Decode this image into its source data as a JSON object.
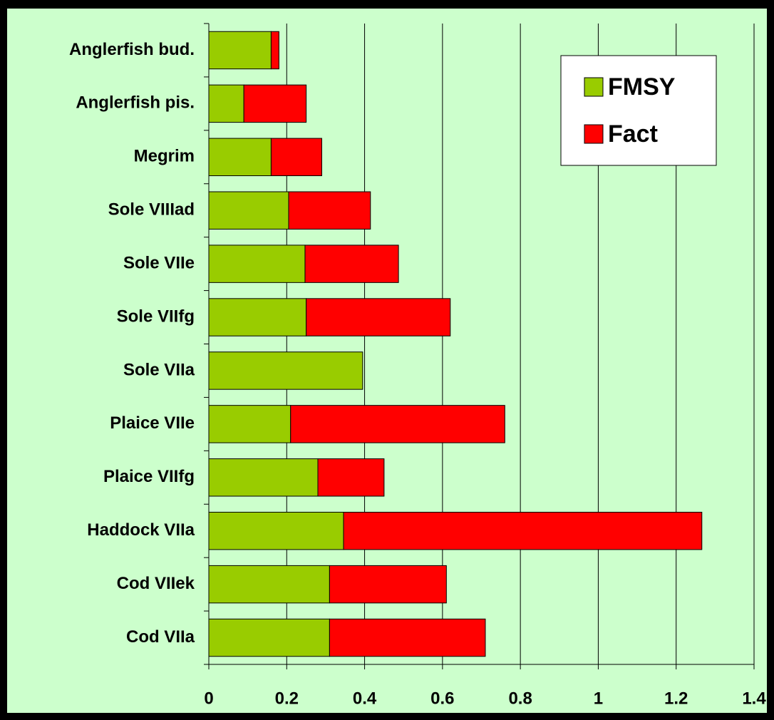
{
  "chart_data": {
    "type": "bar",
    "orientation": "horizontal",
    "stacked": true,
    "categories": [
      "Anglerfish bud.",
      "Anglerfish pis.",
      "Megrim",
      "Sole VIIIad",
      "Sole VIIe",
      "Sole VIIfg",
      "Sole VIIa",
      "Plaice VIIe",
      "Plaice VIIfg",
      "Haddock VIIa",
      "Cod VIIek",
      "Cod VIIa"
    ],
    "series": [
      {
        "name": "FMSY",
        "color": "#99cc00",
        "values": [
          0.16,
          0.09,
          0.16,
          0.205,
          0.247,
          0.25,
          0.395,
          0.21,
          0.28,
          0.346,
          0.31,
          0.31
        ]
      },
      {
        "name": "Fact",
        "color": "#ff0000",
        "values": [
          0.02,
          0.16,
          0.13,
          0.21,
          0.24,
          0.37,
          0,
          0.55,
          0.17,
          0.92,
          0.3,
          0.4
        ]
      }
    ],
    "xlim": [
      0,
      1.4
    ],
    "xticks": [
      0,
      0.2,
      0.4,
      0.6,
      0.8,
      1,
      1.2,
      1.4
    ],
    "grid": true,
    "legend": "upper right"
  }
}
